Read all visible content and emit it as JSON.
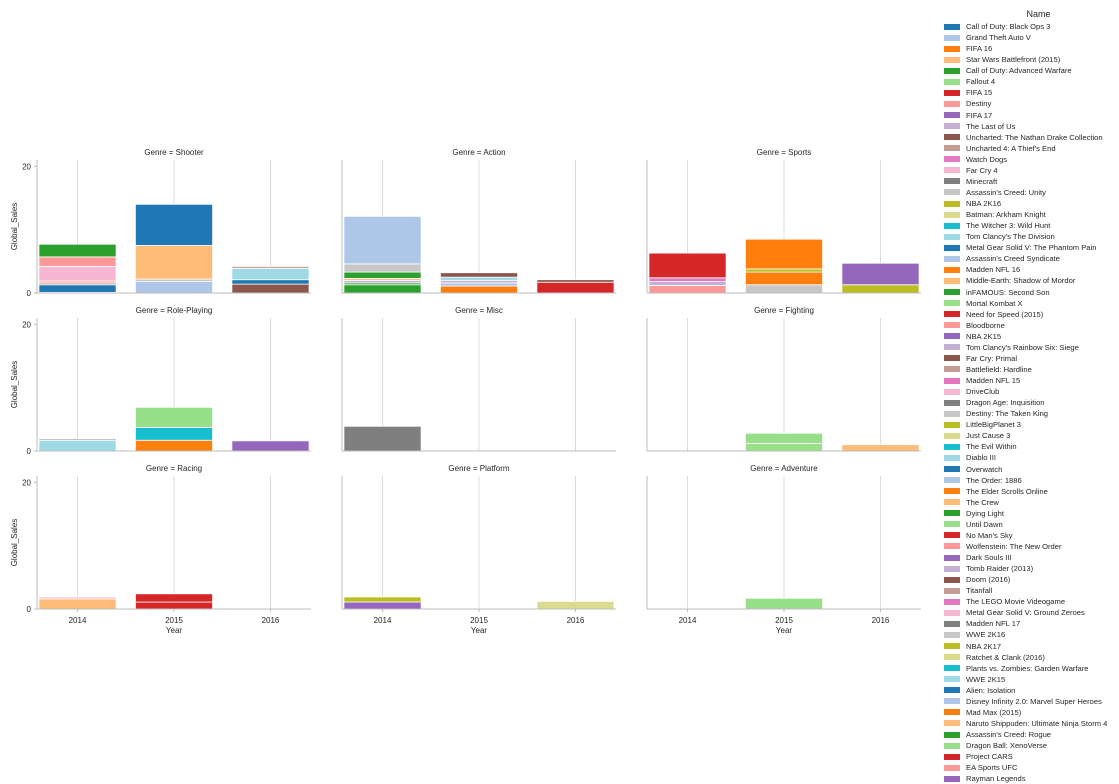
{
  "chart_data": {
    "type": "bar",
    "stacked": true,
    "facet_rows": 3,
    "facet_cols": 3,
    "x": "Year",
    "xlabel": "Year",
    "ylabel": "Global_Sales",
    "categories": [
      "2014",
      "2015",
      "2016"
    ],
    "yticks": [
      0,
      20
    ],
    "ylim": [
      0,
      21
    ],
    "grid": "vertical",
    "legend_title": "Name",
    "legend_position": "right",
    "legend": [
      {
        "name": "Call of Duty: Black Ops 3",
        "color": "#1f77b4"
      },
      {
        "name": "Grand Theft Auto V",
        "color": "#aec7e8"
      },
      {
        "name": "FIFA 16",
        "color": "#ff7f0e"
      },
      {
        "name": "Star Wars Battlefront (2015)",
        "color": "#ffbb78"
      },
      {
        "name": "Call of Duty: Advanced Warfare",
        "color": "#2ca02c"
      },
      {
        "name": "Fallout 4",
        "color": "#98df8a"
      },
      {
        "name": "FIFA 15",
        "color": "#d62728"
      },
      {
        "name": "Destiny",
        "color": "#ff9896"
      },
      {
        "name": "FIFA 17",
        "color": "#9467bd"
      },
      {
        "name": "The Last of Us",
        "color": "#c5b0d5"
      },
      {
        "name": "Uncharted: The Nathan Drake Collection",
        "color": "#8c564b"
      },
      {
        "name": "Uncharted 4: A Thief's End",
        "color": "#c49c94"
      },
      {
        "name": "Watch Dogs",
        "color": "#e377c2"
      },
      {
        "name": "Far Cry 4",
        "color": "#f7b6d2"
      },
      {
        "name": "Minecraft",
        "color": "#7f7f7f"
      },
      {
        "name": "Assassin's Creed: Unity",
        "color": "#c7c7c7"
      },
      {
        "name": "NBA 2K16",
        "color": "#bcbd22"
      },
      {
        "name": "Batman: Arkham Knight",
        "color": "#dbdb8d"
      },
      {
        "name": "The Witcher 3: Wild Hunt",
        "color": "#17becf"
      },
      {
        "name": "Tom Clancy's The Division",
        "color": "#9edae5"
      },
      {
        "name": "Metal Gear Solid V: The Phantom Pain",
        "color": "#1f77b4"
      },
      {
        "name": "Assassin's Creed Syndicate",
        "color": "#aec7e8"
      },
      {
        "name": "Madden NFL 16",
        "color": "#ff7f0e"
      },
      {
        "name": "Middle-Earth: Shadow of Mordor",
        "color": "#ffbb78"
      },
      {
        "name": "inFAMOUS: Second Son",
        "color": "#2ca02c"
      },
      {
        "name": "Mortal Kombat X",
        "color": "#98df8a"
      },
      {
        "name": "Need for Speed (2015)",
        "color": "#d62728"
      },
      {
        "name": "Bloodborne",
        "color": "#ff9896"
      },
      {
        "name": "NBA 2K15",
        "color": "#9467bd"
      },
      {
        "name": "Tom Clancy's Rainbow Six: Siege",
        "color": "#c5b0d5"
      },
      {
        "name": "Far Cry: Primal",
        "color": "#8c564b"
      },
      {
        "name": "Battlefield: Hardline",
        "color": "#c49c94"
      },
      {
        "name": "Madden NFL 15",
        "color": "#e377c2"
      },
      {
        "name": "DriveClub",
        "color": "#f7b6d2"
      },
      {
        "name": "Dragon Age: Inquisition",
        "color": "#7f7f7f"
      },
      {
        "name": "Destiny: The Taken King",
        "color": "#c7c7c7"
      },
      {
        "name": "LittleBigPlanet 3",
        "color": "#bcbd22"
      },
      {
        "name": "Just Cause 3",
        "color": "#dbdb8d"
      },
      {
        "name": "The Evil Within",
        "color": "#17becf"
      },
      {
        "name": "Diablo III",
        "color": "#9edae5"
      },
      {
        "name": "Overwatch",
        "color": "#1f77b4"
      },
      {
        "name": "The Order: 1886",
        "color": "#aec7e8"
      },
      {
        "name": "The Elder Scrolls Online",
        "color": "#ff7f0e"
      },
      {
        "name": "The Crew",
        "color": "#ffbb78"
      },
      {
        "name": "Dying Light",
        "color": "#2ca02c"
      },
      {
        "name": "Until Dawn",
        "color": "#98df8a"
      },
      {
        "name": "No Man's Sky",
        "color": "#d62728"
      },
      {
        "name": "Wolfenstein: The New Order",
        "color": "#ff9896"
      },
      {
        "name": "Dark Souls III",
        "color": "#9467bd"
      },
      {
        "name": "Tomb Raider (2013)",
        "color": "#c5b0d5"
      },
      {
        "name": "Doom (2016)",
        "color": "#8c564b"
      },
      {
        "name": "Titanfall",
        "color": "#c49c94"
      },
      {
        "name": "The LEGO Movie Videogame",
        "color": "#e377c2"
      },
      {
        "name": "Metal Gear Solid V: Ground Zeroes",
        "color": "#f7b6d2"
      },
      {
        "name": "Madden NFL 17",
        "color": "#7f7f7f"
      },
      {
        "name": "WWE 2K16",
        "color": "#c7c7c7"
      },
      {
        "name": "NBA 2K17",
        "color": "#bcbd22"
      },
      {
        "name": "Ratchet & Clank (2016)",
        "color": "#dbdb8d"
      },
      {
        "name": "Plants vs. Zombies: Garden Warfare",
        "color": "#17becf"
      },
      {
        "name": "WWE 2K15",
        "color": "#9edae5"
      },
      {
        "name": "Alien: Isolation",
        "color": "#1f77b4"
      },
      {
        "name": "Disney Infinity 2.0: Marvel Super Heroes",
        "color": "#aec7e8"
      },
      {
        "name": "Mad Max (2015)",
        "color": "#ff7f0e"
      },
      {
        "name": "Naruto Shippuden: Ultimate Ninja Storm 4",
        "color": "#ffbb78"
      },
      {
        "name": "Assassin's Creed: Rogue",
        "color": "#2ca02c"
      },
      {
        "name": "Dragon Ball: XenoVerse",
        "color": "#98df8a"
      },
      {
        "name": "Project CARS",
        "color": "#d62728"
      },
      {
        "name": "EA Sports UFC",
        "color": "#ff9896"
      },
      {
        "name": "Rayman Legends",
        "color": "#9467bd"
      }
    ],
    "panels": [
      {
        "title": "Genre = Shooter",
        "bars": [
          {
            "year": "2014",
            "segments": [
              {
                "name": "Titanfall",
                "value": 0.1
              },
              {
                "name": "Alien: Isolation",
                "value": 1.2
              },
              {
                "name": "Battlefield: Hardline",
                "value": 0.3
              },
              {
                "name": "Wolfenstein: The New Order",
                "value": 0.3
              },
              {
                "name": "Far Cry 4",
                "value": 2.3
              },
              {
                "name": "Destiny",
                "value": 1.5
              },
              {
                "name": "Call of Duty: Advanced Warfare",
                "value": 2.0
              }
            ]
          },
          {
            "year": "2015",
            "segments": [
              {
                "name": "Grand Theft Auto V",
                "value": 1.8
              },
              {
                "name": "Destiny: The Taken King",
                "value": 0.4
              },
              {
                "name": "Star Wars Battlefront (2015)",
                "value": 5.3
              },
              {
                "name": "Call of Duty: Black Ops 3",
                "value": 6.5
              }
            ]
          },
          {
            "year": "2016",
            "segments": [
              {
                "name": "Doom (2016)",
                "value": 1.4
              },
              {
                "name": "Overwatch",
                "value": 0.7
              },
              {
                "name": "Tom Clancy's The Division",
                "value": 1.8
              },
              {
                "name": "Uncharted 4: A Thief's End",
                "value": 0.3
              }
            ]
          }
        ]
      },
      {
        "title": "Genre = Action",
        "bars": [
          {
            "year": "2014",
            "segments": [
              {
                "name": "inFAMOUS: Second Son",
                "value": 1.3
              },
              {
                "name": "Assassin's Creed: Rogue",
                "value": 0.3
              },
              {
                "name": "The Last of Us",
                "value": 0.4
              },
              {
                "name": "Middle-Earth: Shadow of Mordor",
                "value": 0.3
              },
              {
                "name": "Dying Light",
                "value": 1.0
              },
              {
                "name": "Assassin's Creed: Unity",
                "value": 1.3
              },
              {
                "name": "Grand Theft Auto V",
                "value": 7.5
              }
            ]
          },
          {
            "year": "2015",
            "segments": [
              {
                "name": "Mad Max (2015)",
                "value": 1.1
              },
              {
                "name": "Assassin's Creed Syndicate",
                "value": 0.5
              },
              {
                "name": "The Last of Us",
                "value": 0.4
              },
              {
                "name": "Tom Clancy's The Division",
                "value": 0.5
              },
              {
                "name": "Uncharted: The Nathan Drake Collection",
                "value": 0.7
              }
            ]
          },
          {
            "year": "2016",
            "segments": [
              {
                "name": "FIFA 15",
                "value": 1.7
              },
              {
                "name": "Uncharted: The Nathan Drake Collection",
                "value": 0.4
              }
            ]
          }
        ]
      },
      {
        "title": "Genre = Sports",
        "bars": [
          {
            "year": "2014",
            "segments": [
              {
                "name": "Destiny",
                "value": 1.2
              },
              {
                "name": "Tomb Raider (2013)",
                "value": 0.6
              },
              {
                "name": "Madden NFL 15",
                "value": 0.6
              },
              {
                "name": "FIFA 15",
                "value": 3.9
              }
            ]
          },
          {
            "year": "2015",
            "segments": [
              {
                "name": "WWE 2K16",
                "value": 1.3
              },
              {
                "name": "Madden NFL 16",
                "value": 2.0
              },
              {
                "name": "NBA 2K16",
                "value": 0.5
              },
              {
                "name": "FIFA 16",
                "value": 4.7
              }
            ]
          },
          {
            "year": "2016",
            "segments": [
              {
                "name": "NBA 2K17",
                "value": 1.3
              },
              {
                "name": "FIFA 17",
                "value": 3.4
              }
            ]
          }
        ]
      },
      {
        "title": "Genre = Role-Playing",
        "bars": [
          {
            "year": "2014",
            "segments": [
              {
                "name": "Diablo III",
                "value": 1.7
              },
              {
                "name": "Dragon Age: Inquisition",
                "value": 0.2
              }
            ]
          },
          {
            "year": "2015",
            "segments": [
              {
                "name": "The Elder Scrolls Online",
                "value": 1.7
              },
              {
                "name": "The Witcher 3: Wild Hunt",
                "value": 2.0
              },
              {
                "name": "Fallout 4",
                "value": 3.2
              }
            ]
          },
          {
            "year": "2016",
            "segments": [
              {
                "name": "Dark Souls III",
                "value": 1.6
              }
            ]
          }
        ]
      },
      {
        "title": "Genre = Misc",
        "bars": [
          {
            "year": "2014",
            "segments": [
              {
                "name": "Minecraft",
                "value": 3.9
              }
            ]
          }
        ]
      },
      {
        "title": "Genre = Fighting",
        "bars": [
          {
            "year": "2015",
            "segments": [
              {
                "name": "Dragon Ball: XenoVerse",
                "value": 1.2
              },
              {
                "name": "Mortal Kombat X",
                "value": 1.6
              }
            ]
          },
          {
            "year": "2016",
            "segments": [
              {
                "name": "Naruto Shippuden: Ultimate Ninja Storm 4",
                "value": 1.0
              }
            ]
          }
        ]
      },
      {
        "title": "Genre = Racing",
        "bars": [
          {
            "year": "2014",
            "segments": [
              {
                "name": "The Crew",
                "value": 1.6
              },
              {
                "name": "DriveClub",
                "value": 0.3
              }
            ]
          },
          {
            "year": "2015",
            "segments": [
              {
                "name": "Project CARS",
                "value": 1.1
              },
              {
                "name": "Need for Speed (2015)",
                "value": 1.3
              }
            ]
          }
        ]
      },
      {
        "title": "Genre = Platform",
        "bars": [
          {
            "year": "2014",
            "segments": [
              {
                "name": "Rayman Legends",
                "value": 1.1
              },
              {
                "name": "LittleBigPlanet 3",
                "value": 0.8
              }
            ]
          },
          {
            "year": "2016",
            "segments": [
              {
                "name": "Ratchet & Clank (2016)",
                "value": 1.2
              }
            ]
          }
        ]
      },
      {
        "title": "Genre = Adventure",
        "bars": [
          {
            "year": "2015",
            "segments": [
              {
                "name": "Until Dawn",
                "value": 1.7
              }
            ]
          }
        ]
      }
    ]
  }
}
